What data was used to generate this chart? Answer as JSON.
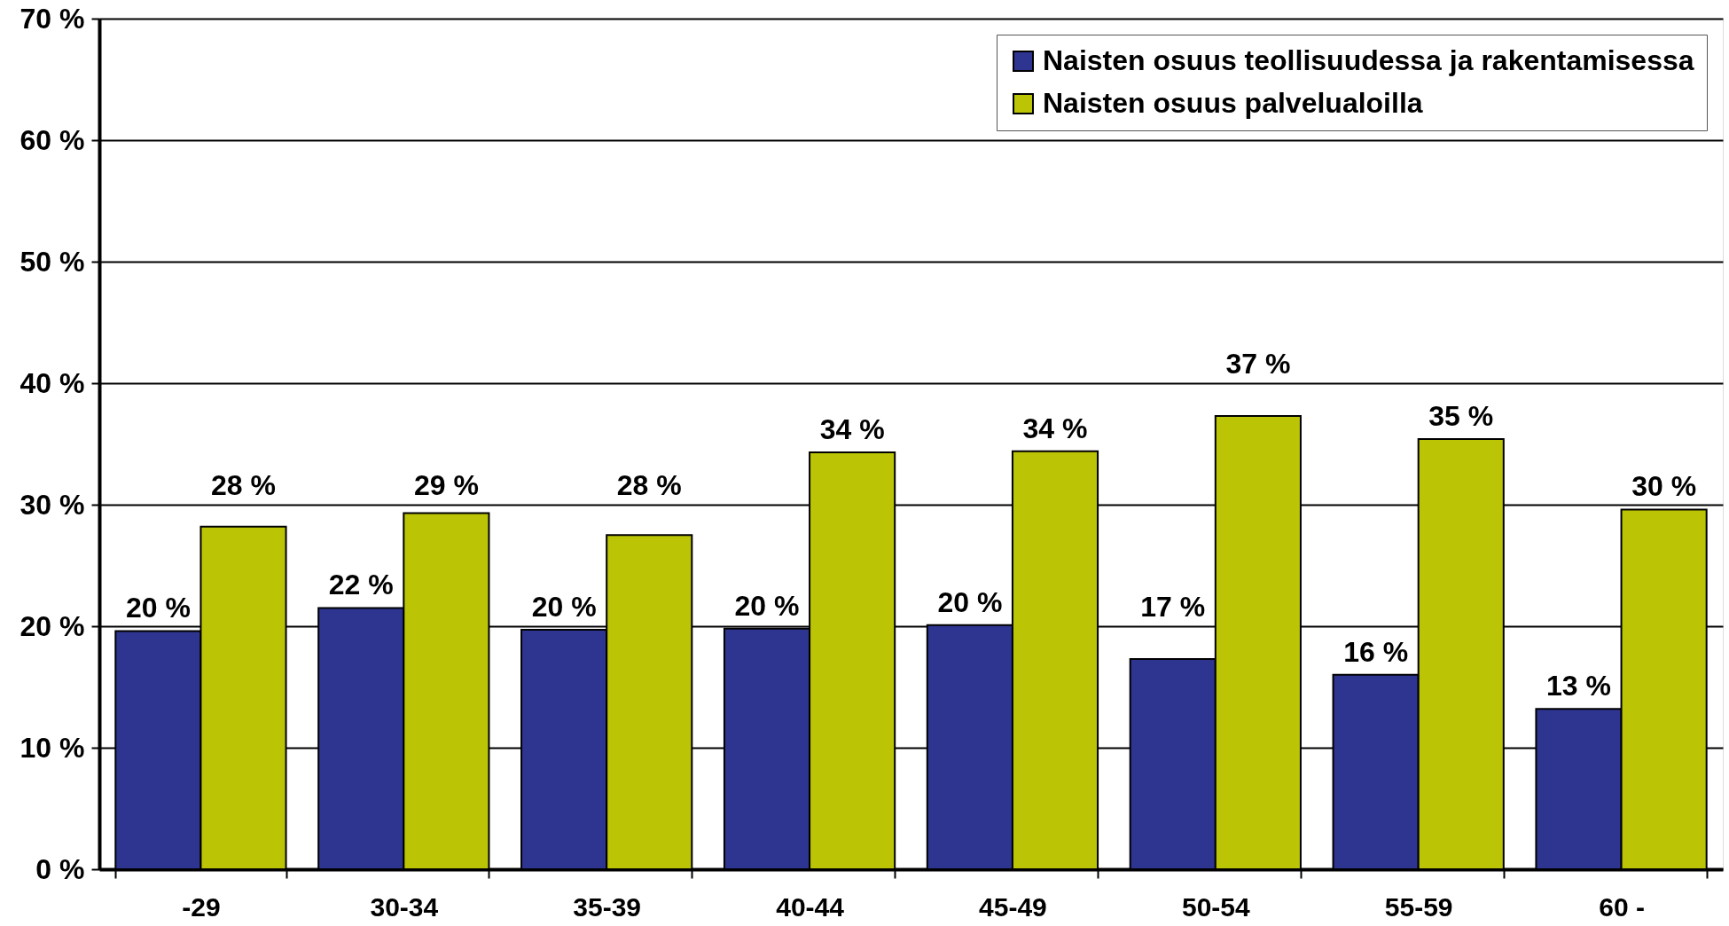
{
  "chart_data": {
    "type": "bar",
    "categories": [
      "-29",
      "30-34",
      "35-39",
      "40-44",
      "45-49",
      "50-54",
      "55-59",
      "60 -"
    ],
    "series": [
      {
        "name": "Naisten osuus teollisuudessa ja rakentamisessa",
        "color": "#2e3590",
        "values": [
          19.6,
          21.5,
          19.7,
          19.8,
          20.1,
          17.3,
          16.0,
          13.2
        ],
        "value_labels": [
          "20 %",
          "22 %",
          "20 %",
          "20 %",
          "20 %",
          "17 %",
          "16 %",
          "13 %"
        ]
      },
      {
        "name": "Naisten osuus palvelualoilla",
        "color": "#bbc405",
        "values": [
          28.2,
          29.3,
          27.5,
          34.3,
          34.4,
          37.3,
          35.4,
          29.6
        ],
        "value_labels": [
          "28 %",
          "29 %",
          "28 %",
          "34 %",
          "34 %",
          "37 %",
          "35 %",
          "30 %"
        ]
      }
    ],
    "ylim": [
      0,
      70
    ],
    "yticks": [
      {
        "value": 0,
        "label": "0 %"
      },
      {
        "value": 10,
        "label": "10 %"
      },
      {
        "value": 20,
        "label": "20 %"
      },
      {
        "value": 30,
        "label": "30 %"
      },
      {
        "value": 40,
        "label": "40 %"
      },
      {
        "value": 50,
        "label": "50 %"
      },
      {
        "value": 60,
        "label": "60 %"
      },
      {
        "value": 70,
        "label": "70 %"
      }
    ],
    "grid": "y",
    "legend": "top right"
  }
}
